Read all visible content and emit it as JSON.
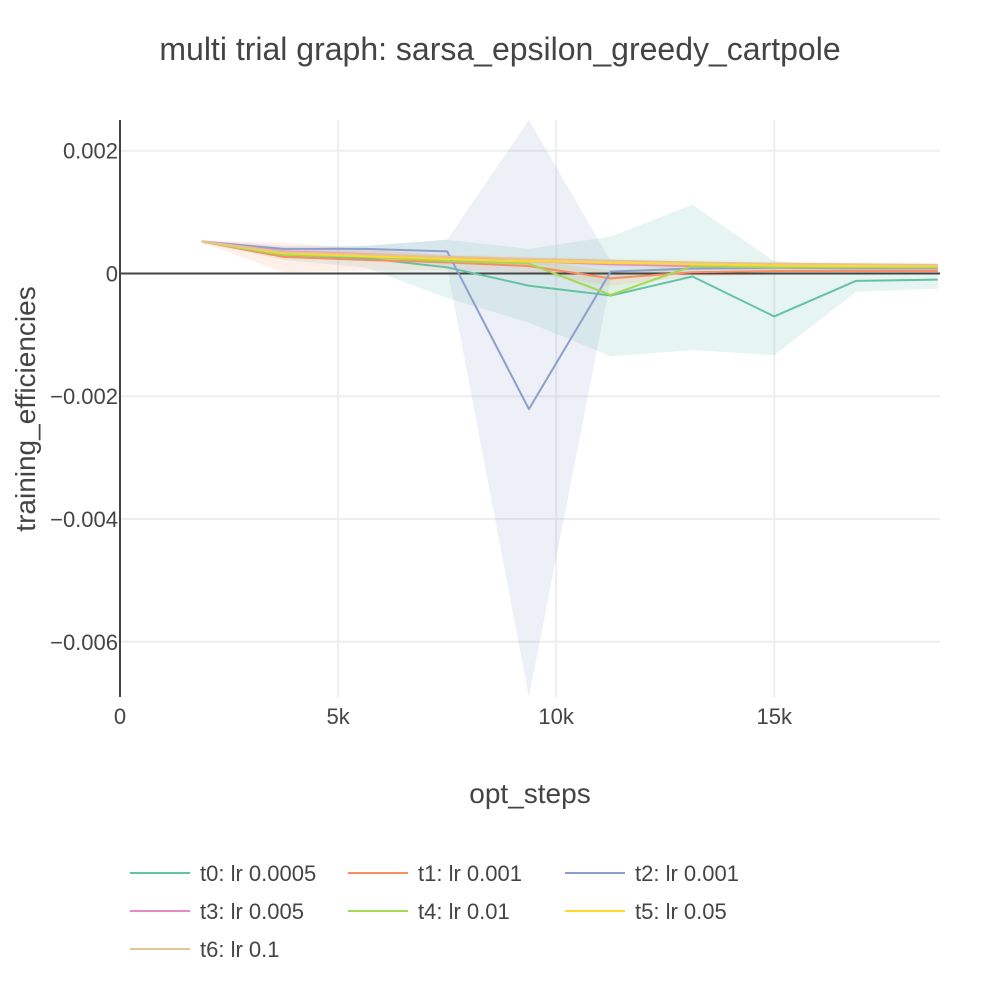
{
  "chart_data": {
    "type": "line",
    "title": "multi trial graph: sarsa_epsilon_greedy_cartpole",
    "xlabel": "opt_steps",
    "ylabel": "training_efficiencies",
    "xlim": [
      0,
      18800
    ],
    "ylim": [
      -0.0069,
      0.0025
    ],
    "xticks": [
      0,
      5000,
      10000,
      15000
    ],
    "xtick_labels": [
      "0",
      "5k",
      "10k",
      "15k"
    ],
    "yticks": [
      0.002,
      0,
      -0.002,
      -0.004,
      -0.006
    ],
    "ytick_labels": [
      "0.002",
      "0",
      "−0.002",
      "−0.004",
      "−0.006"
    ],
    "grid": true,
    "legend_position": "bottom",
    "x": [
      1875,
      3750,
      5625,
      7500,
      9375,
      11250,
      13125,
      15000,
      16875,
      18750
    ],
    "series": [
      {
        "name": "t0: lr 0.0005",
        "color": "#66c2a5",
        "band_color": "rgba(102,194,165,0.16)",
        "values": [
          0.00052,
          0.0003,
          0.00025,
          0.0001,
          -0.0002,
          -0.00036,
          -5e-05,
          -0.0007,
          -0.00012,
          -0.0001
        ],
        "upper": [
          0.00054,
          0.0004,
          0.00045,
          0.00055,
          0.0004,
          0.0006,
          0.00112,
          0.0002,
          0.0001,
          0.0001
        ],
        "lower": [
          0.0005,
          0.00022,
          0.0001,
          -0.0004,
          -0.0008,
          -0.00135,
          -0.00125,
          -0.00133,
          -0.0003,
          -0.00025
        ]
      },
      {
        "name": "t1: lr 0.001",
        "color": "#fc8d62",
        "band_color": "rgba(252,141,98,0.14)",
        "values": [
          0.00052,
          0.00027,
          0.00022,
          0.00018,
          0.00012,
          -8e-05,
          2e-05,
          4e-05,
          4e-05,
          4e-05
        ],
        "upper": [
          0.00054,
          0.0005,
          0.0004,
          0.0003,
          0.0002,
          5e-05,
          0.0001,
          0.0001,
          8e-05,
          8e-05
        ],
        "lower": [
          0.0005,
          2e-05,
          5e-05,
          5e-05,
          2e-05,
          -0.0002,
          -5e-05,
          -2e-05,
          0.0,
          0.0
        ]
      },
      {
        "name": "t2: lr 0.001",
        "color": "#8da0cb",
        "band_color": "rgba(141,160,203,0.16)",
        "values": [
          0.00052,
          0.0004,
          0.0004,
          0.00036,
          -0.00221,
          3e-05,
          8e-05,
          9e-05,
          8e-05,
          8e-05
        ],
        "upper": [
          0.00054,
          0.00045,
          0.00045,
          0.00055,
          0.0025,
          0.0002,
          0.00012,
          0.00012,
          0.0001,
          0.0001
        ],
        "lower": [
          0.0005,
          0.00035,
          0.00035,
          0.0001,
          -0.0069,
          -0.0001,
          4e-05,
          6e-05,
          6e-05,
          6e-05
        ]
      },
      {
        "name": "t3: lr 0.005",
        "color": "#e78ac3",
        "band_color": "rgba(231,138,195,0.10)",
        "values": [
          0.00052,
          0.00036,
          0.00032,
          0.00025,
          0.0002,
          0.00015,
          0.00012,
          0.0001,
          0.0001,
          9e-05
        ],
        "upper": [
          0.00054,
          0.00042,
          0.00038,
          0.0003,
          0.00025,
          0.0002,
          0.00016,
          0.00014,
          0.00013,
          0.00012
        ],
        "lower": [
          0.0005,
          0.0003,
          0.00026,
          0.0002,
          0.00015,
          0.0001,
          8e-05,
          6e-05,
          7e-05,
          6e-05
        ]
      },
      {
        "name": "t4: lr 0.01",
        "color": "#a6d854",
        "band_color": "rgba(166,216,84,0.10)",
        "values": [
          0.00052,
          0.0003,
          0.00027,
          0.0002,
          0.00016,
          -0.00035,
          0.00012,
          0.0001,
          0.0001,
          0.0001
        ],
        "upper": [
          0.00054,
          0.00035,
          0.00032,
          0.00025,
          0.0002,
          5e-05,
          0.00015,
          0.00013,
          0.00013,
          0.00013
        ],
        "lower": [
          0.0005,
          0.00025,
          0.00022,
          0.00015,
          0.00012,
          -0.0004,
          9e-05,
          7e-05,
          7e-05,
          7e-05
        ]
      },
      {
        "name": "t5: lr 0.05",
        "color": "#ffd92f",
        "band_color": "rgba(255,217,47,0.10)",
        "values": [
          0.00052,
          0.00033,
          0.00028,
          0.00024,
          0.0002,
          0.00017,
          0.00015,
          0.00013,
          0.00012,
          0.00012
        ],
        "upper": [
          0.00054,
          0.00037,
          0.00032,
          0.00028,
          0.00024,
          0.00021,
          0.00019,
          0.00017,
          0.00016,
          0.00015
        ],
        "lower": [
          0.0005,
          0.00029,
          0.00024,
          0.0002,
          0.00016,
          0.00013,
          0.00011,
          9e-05,
          8e-05,
          9e-05
        ]
      },
      {
        "name": "t6: lr 0.1",
        "color": "#e5c494",
        "band_color": "rgba(229,196,148,0.10)",
        "values": [
          0.00052,
          0.00035,
          0.00031,
          0.00027,
          0.00024,
          0.00021,
          0.00018,
          0.00016,
          0.00015,
          0.00014
        ],
        "upper": [
          0.00054,
          0.00039,
          0.00035,
          0.00031,
          0.00028,
          0.00025,
          0.00022,
          0.0002,
          0.00019,
          0.00018
        ],
        "lower": [
          0.0005,
          0.00031,
          0.00027,
          0.00023,
          0.0002,
          0.00017,
          0.00014,
          0.00012,
          0.00011,
          0.0001
        ]
      }
    ]
  }
}
